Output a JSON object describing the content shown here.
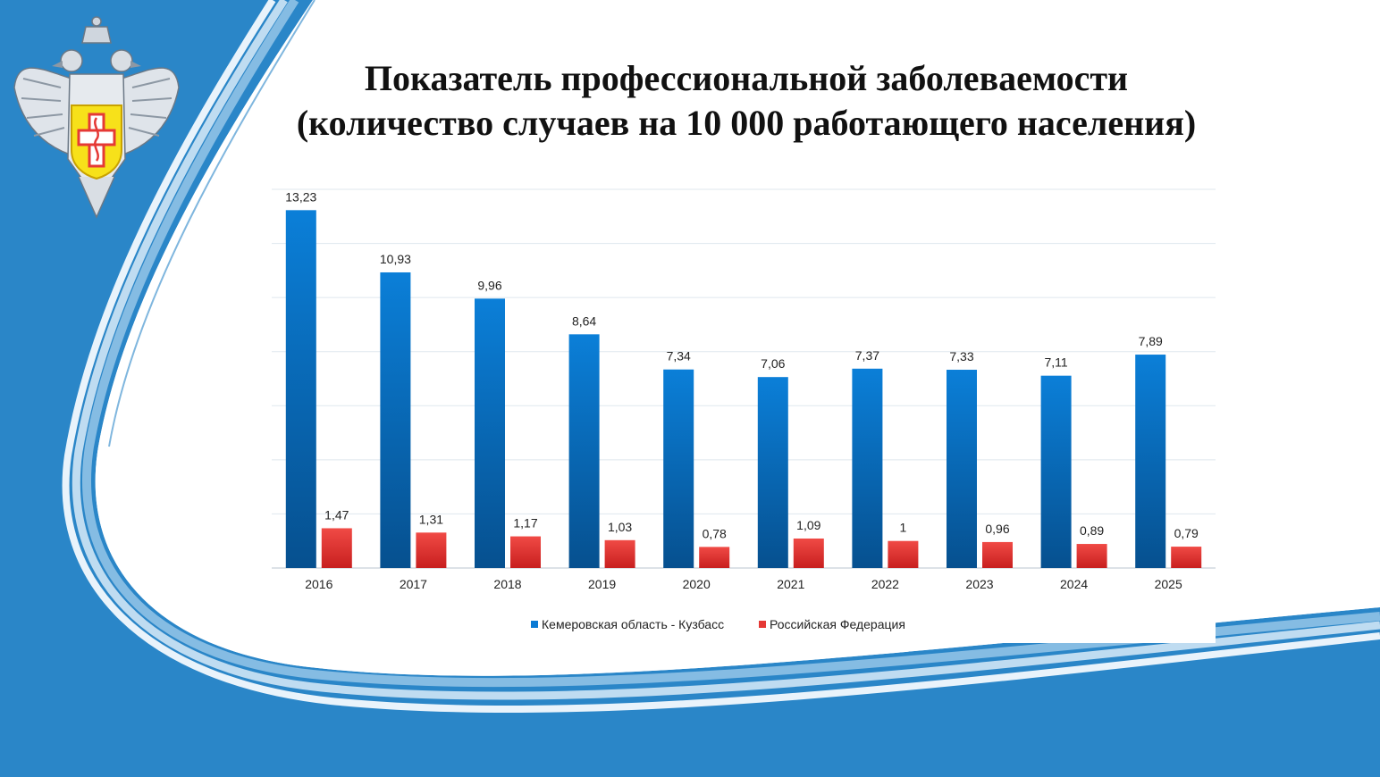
{
  "title_line1": "Показатель профессиональной заболеваемости",
  "title_line2": "(количество случаев на 10 000 работающего населения)",
  "colors": {
    "background_blue": "#2a86c8",
    "bar_blue": "#0a7ad4",
    "bar_red": "#e53935",
    "emblem_shield": "#f7e11a",
    "emblem_cross": "#e53935"
  },
  "emblem": {
    "icon": "double-headed-eagle-emblem"
  },
  "chart_data": {
    "type": "bar",
    "categories": [
      "2016",
      "2017",
      "2018",
      "2019",
      "2020",
      "2021",
      "2022",
      "2023",
      "2024",
      "2025"
    ],
    "series": [
      {
        "name": "Кемеровская область - Кузбасс",
        "values": [
          13.23,
          10.93,
          9.96,
          8.64,
          7.34,
          7.06,
          7.37,
          7.33,
          7.11,
          7.89
        ],
        "labels": [
          "13,23",
          "10,93",
          "9,96",
          "8,64",
          "7,34",
          "7,06",
          "7,37",
          "7,33",
          "7,11",
          "7,89"
        ]
      },
      {
        "name": "Российская Федерация",
        "values": [
          1.47,
          1.31,
          1.17,
          1.03,
          0.78,
          1.09,
          1.0,
          0.96,
          0.89,
          0.79
        ],
        "labels": [
          "1,47",
          "1,31",
          "1,17",
          "1,03",
          "0,78",
          "1,09",
          "1",
          "0,96",
          "0,89",
          "0,79"
        ]
      }
    ],
    "ylim": [
      0,
      14
    ],
    "grid": true,
    "legend": "bottom-center"
  }
}
